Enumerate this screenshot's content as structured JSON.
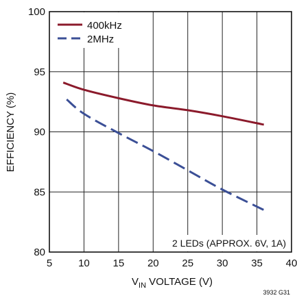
{
  "chart_data": {
    "type": "line",
    "title": "",
    "xlabel": "V_IN VOLTAGE (V)",
    "xlabel_parts": {
      "main": "V",
      "sub": "IN",
      "rest": " VOLTAGE (V)"
    },
    "ylabel": "EFFICIENCY (%)",
    "xlim": [
      5,
      40
    ],
    "ylim": [
      80,
      100
    ],
    "xticks": [
      5,
      10,
      15,
      20,
      25,
      30,
      35,
      40
    ],
    "yticks": [
      80,
      85,
      90,
      95,
      100
    ],
    "grid": true,
    "legend": "top-left",
    "annotation": "2 LEDs (APPROX. 6V, 1A)",
    "figure_id": "3932 G31",
    "series": [
      {
        "name": "400kHz",
        "color": "#8b1a2b",
        "dash": "solid",
        "x": [
          7,
          10,
          15,
          20,
          25,
          30,
          36
        ],
        "y": [
          94.1,
          93.5,
          92.8,
          92.2,
          91.8,
          91.3,
          90.6
        ]
      },
      {
        "name": "2MHz",
        "color": "#3b4f96",
        "dash": "dashed",
        "x": [
          7.5,
          10,
          15,
          20,
          25,
          30,
          36
        ],
        "y": [
          92.7,
          91.5,
          89.9,
          88.4,
          86.8,
          85.2,
          83.5
        ]
      }
    ]
  }
}
